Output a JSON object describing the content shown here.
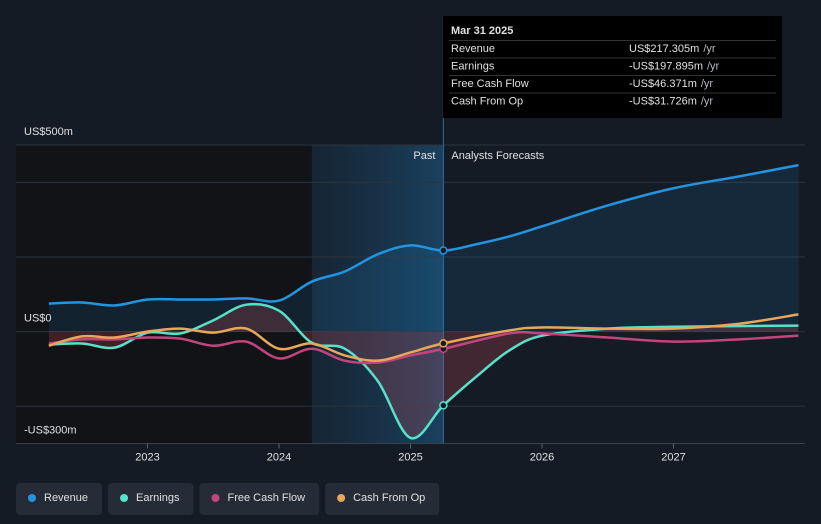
{
  "chart_data": {
    "type": "line",
    "xlim": [
      2022,
      2028
    ],
    "xticks": [
      {
        "value": 2023,
        "label": "2023"
      },
      {
        "value": 2024,
        "label": "2024"
      },
      {
        "value": 2025,
        "label": "2025"
      },
      {
        "value": 2026,
        "label": "2026"
      },
      {
        "value": 2027,
        "label": "2027"
      }
    ],
    "ylim": [
      -300,
      500
    ],
    "yticks": [
      {
        "value": 500,
        "label": "US$500m"
      },
      {
        "value": 400,
        "label": null
      },
      {
        "value": 200,
        "label": null
      },
      {
        "value": 0,
        "label": "US$0"
      },
      {
        "value": -200,
        "label": null
      },
      {
        "value": -300,
        "label": "-US$300m"
      }
    ],
    "grid": true,
    "past_start": 2024.25,
    "divider": 2025.25,
    "past_label": "Past",
    "forecast_label": "Analysts Forecasts",
    "series": [
      {
        "name": "Revenue",
        "color": "#2394df",
        "x": [
          2022.25,
          2022.5,
          2022.75,
          2023.0,
          2023.25,
          2023.5,
          2023.75,
          2024.0,
          2024.25,
          2024.5,
          2024.75,
          2025.0,
          2025.25,
          2025.5,
          2025.75,
          2026.0,
          2026.5,
          2027.0,
          2027.5,
          2027.95
        ],
        "values": [
          75,
          78,
          70,
          86,
          86,
          86,
          89,
          83,
          134,
          161,
          207,
          231,
          217.305,
          234,
          255,
          282,
          338,
          384,
          416,
          446
        ]
      },
      {
        "name": "Earnings",
        "color": "#58e1c9",
        "x": [
          2022.25,
          2022.5,
          2022.75,
          2023.0,
          2023.25,
          2023.5,
          2023.75,
          2024.0,
          2024.25,
          2024.5,
          2024.75,
          2025.0,
          2025.25,
          2025.5,
          2025.75,
          2026.0,
          2026.5,
          2027.0,
          2027.95
        ],
        "values": [
          -35,
          -32,
          -43,
          -3,
          -5,
          30,
          72,
          56,
          -30,
          -46,
          -132,
          -285,
          -197.895,
          -121,
          -51,
          -11,
          8,
          13,
          16
        ]
      },
      {
        "name": "Free Cash Flow",
        "color": "#c2457e",
        "x": [
          2022.25,
          2022.5,
          2022.75,
          2023.0,
          2023.25,
          2023.5,
          2023.75,
          2024.0,
          2024.25,
          2024.5,
          2024.75,
          2025.0,
          2025.25,
          2025.75,
          2026.0,
          2026.5,
          2027.0,
          2027.5,
          2027.95
        ],
        "values": [
          -32,
          -21,
          -21,
          -16,
          -19,
          -38,
          -27,
          -72,
          -46,
          -78,
          -83,
          -64,
          -46.371,
          -5,
          -5,
          -16,
          -27,
          -21,
          -11
        ]
      },
      {
        "name": "Cash From Op",
        "color": "#e8a85a",
        "x": [
          2022.25,
          2022.5,
          2022.75,
          2023.0,
          2023.25,
          2023.5,
          2023.75,
          2024.0,
          2024.25,
          2024.5,
          2024.75,
          2025.0,
          2025.25,
          2025.75,
          2026.0,
          2026.5,
          2027.0,
          2027.5,
          2027.95
        ],
        "values": [
          -38,
          -13,
          -16,
          0,
          8,
          -3,
          8,
          -46,
          -32,
          -64,
          -78,
          -56,
          -31.726,
          3,
          11,
          8,
          8,
          21,
          46
        ]
      }
    ],
    "tooltip": {
      "date": "Mar 31 2025",
      "rows": [
        {
          "label": "Revenue",
          "value": "US$217.305m",
          "unit": "/yr",
          "color": "#2f9ee8"
        },
        {
          "label": "Earnings",
          "value": "-US$197.895m",
          "unit": "/yr",
          "color": "#e64b4b"
        },
        {
          "label": "Free Cash Flow",
          "value": "-US$46.371m",
          "unit": "/yr",
          "color": "#e64b4b"
        },
        {
          "label": "Cash From Op",
          "value": "-US$31.726m",
          "unit": "/yr",
          "color": "#e64b4b"
        }
      ]
    }
  }
}
